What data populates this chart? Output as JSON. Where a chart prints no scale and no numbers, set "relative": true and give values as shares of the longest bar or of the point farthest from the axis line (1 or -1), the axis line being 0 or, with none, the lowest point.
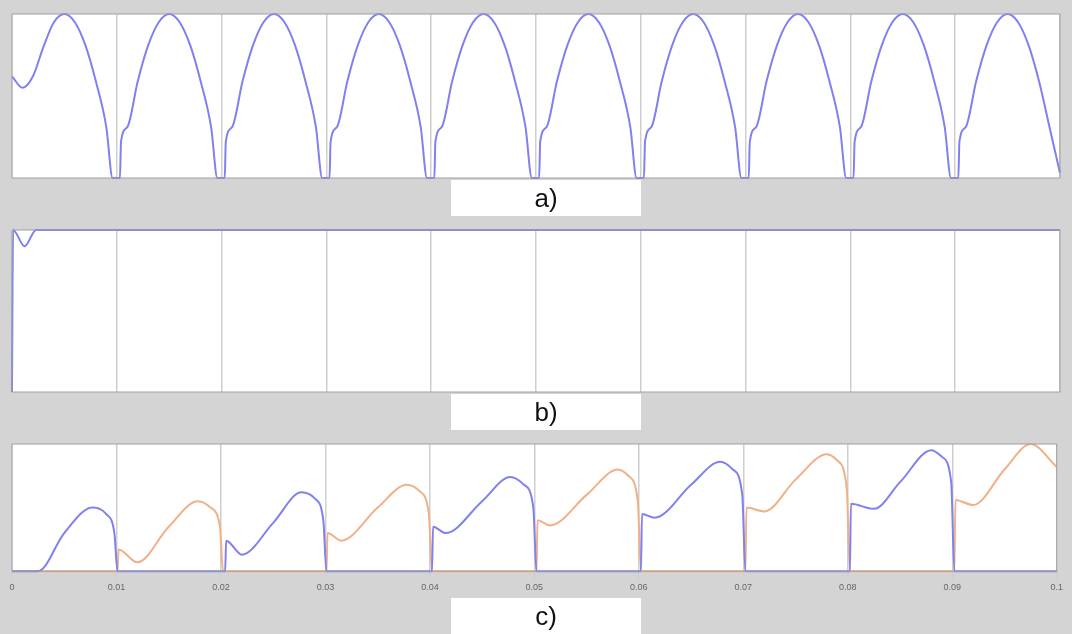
{
  "chart_data": [
    {
      "type": "line",
      "xlabel": "a)",
      "relative": true,
      "grid": "x",
      "tick_labels": false,
      "xlim": [
        0,
        0.1
      ],
      "xticks": [
        0,
        0.01,
        0.02,
        0.03,
        0.04,
        0.05,
        0.06,
        0.07,
        0.08,
        0.09,
        0.1
      ],
      "x": [
        0,
        0.001,
        0.002,
        0.003,
        0.004,
        0.005,
        0.006,
        0.007,
        0.008,
        0.009,
        0.0096,
        0.0103,
        0.0104,
        0.011,
        0.012,
        0.013,
        0.014,
        0.015,
        0.016,
        0.017,
        0.018,
        0.019,
        0.0196,
        0.0203,
        0.0204,
        0.021,
        0.022,
        0.023,
        0.024,
        0.025,
        0.026,
        0.027,
        0.028,
        0.029,
        0.0296,
        0.0303,
        0.0304,
        0.031,
        0.032,
        0.033,
        0.034,
        0.035,
        0.036,
        0.037,
        0.038,
        0.039,
        0.0396,
        0.0403,
        0.0404,
        0.041,
        0.042,
        0.043,
        0.044,
        0.045,
        0.046,
        0.047,
        0.048,
        0.049,
        0.0496,
        0.0503,
        0.0504,
        0.051,
        0.052,
        0.053,
        0.054,
        0.055,
        0.056,
        0.057,
        0.058,
        0.059,
        0.0596,
        0.0603,
        0.0604,
        0.061,
        0.062,
        0.063,
        0.064,
        0.065,
        0.066,
        0.067,
        0.068,
        0.069,
        0.0696,
        0.0703,
        0.0704,
        0.071,
        0.072,
        0.073,
        0.074,
        0.075,
        0.076,
        0.077,
        0.078,
        0.079,
        0.0796,
        0.0803,
        0.0804,
        0.081,
        0.082,
        0.083,
        0.084,
        0.085,
        0.086,
        0.087,
        0.088,
        0.089,
        0.0896,
        0.0903,
        0.0904,
        0.091,
        0.092,
        0.093,
        0.094,
        0.095,
        0.096,
        0.097,
        0.098,
        0.099,
        0.1
      ],
      "series": [
        {
          "color": "#8080f0",
          "values": [
            0.62,
            0.55,
            0.62,
            0.8,
            0.95,
            1,
            0.95,
            0.81,
            0.59,
            0.31,
            0,
            0,
            0.22,
            0.31,
            0.59,
            0.81,
            0.95,
            1,
            0.95,
            0.81,
            0.59,
            0.31,
            0,
            0,
            0.22,
            0.31,
            0.59,
            0.81,
            0.95,
            1,
            0.95,
            0.81,
            0.59,
            0.31,
            0,
            0,
            0.22,
            0.31,
            0.59,
            0.81,
            0.95,
            1,
            0.95,
            0.81,
            0.59,
            0.31,
            0,
            0,
            0.22,
            0.31,
            0.59,
            0.81,
            0.95,
            1,
            0.95,
            0.81,
            0.59,
            0.31,
            0,
            0,
            0.22,
            0.31,
            0.59,
            0.81,
            0.95,
            1,
            0.95,
            0.81,
            0.59,
            0.31,
            0,
            0,
            0.22,
            0.31,
            0.59,
            0.81,
            0.95,
            1,
            0.95,
            0.81,
            0.59,
            0.31,
            0,
            0,
            0.22,
            0.31,
            0.59,
            0.81,
            0.95,
            1,
            0.95,
            0.81,
            0.59,
            0.31,
            0,
            0,
            0.22,
            0.31,
            0.59,
            0.81,
            0.95,
            1,
            0.95,
            0.81,
            0.59,
            0.31,
            0,
            0,
            0.22,
            0.31,
            0.59,
            0.81,
            0.95,
            1,
            0.95,
            0.81,
            0.59,
            0.31,
            0.03
          ]
        }
      ]
    },
    {
      "type": "line",
      "xlabel": "b)",
      "relative": true,
      "grid": "x",
      "tick_labels": false,
      "xlim": [
        0,
        0.1
      ],
      "xticks": [
        0,
        0.01,
        0.02,
        0.03,
        0.04,
        0.05,
        0.06,
        0.07,
        0.08,
        0.09,
        0.1
      ],
      "x": [
        0,
        0.0001,
        0.0012,
        0.0023,
        0.1
      ],
      "series": [
        {
          "color": "#8080f0",
          "values": [
            0,
            1,
            0.9,
            1,
            1
          ]
        }
      ]
    },
    {
      "type": "line",
      "xlabel": "c)",
      "relative": true,
      "grid": "x",
      "tick_labels": "x",
      "xlim": [
        0,
        0.1
      ],
      "xticks": [
        0,
        0.01,
        0.02,
        0.03,
        0.04,
        0.05,
        0.06,
        0.07,
        0.08,
        0.09,
        0.1
      ],
      "series": [
        {
          "color": "#8080f0",
          "x": [
            0,
            0.0025,
            0.005,
            0.0077,
            0.009,
            0.0098,
            0.0101,
            0.0204,
            0.0205,
            0.022,
            0.025,
            0.0277,
            0.029,
            0.0298,
            0.0301,
            0.0402,
            0.0403,
            0.0415,
            0.045,
            0.0477,
            0.049,
            0.0499,
            0.0502,
            0.0602,
            0.0603,
            0.0615,
            0.065,
            0.0678,
            0.069,
            0.0699,
            0.0702,
            0.0802,
            0.0803,
            0.0825,
            0.085,
            0.088,
            0.089,
            0.0899,
            0.0902,
            0.1
          ],
          "values": [
            0,
            0,
            0.3,
            0.5,
            0.45,
            0.3,
            0,
            0,
            0.24,
            0.13,
            0.38,
            0.62,
            0.57,
            0.4,
            0,
            0,
            0.35,
            0.3,
            0.55,
            0.74,
            0.68,
            0.5,
            0,
            0,
            0.45,
            0.42,
            0.68,
            0.86,
            0.8,
            0.6,
            0,
            0,
            0.53,
            0.49,
            0.7,
            0.95,
            0.9,
            0.7,
            0,
            0
          ]
        },
        {
          "color": "#f0b088",
          "x": [
            0,
            0.0101,
            0.0102,
            0.012,
            0.015,
            0.0178,
            0.019,
            0.0199,
            0.0202,
            0.0301,
            0.0302,
            0.0315,
            0.035,
            0.0378,
            0.039,
            0.0399,
            0.0402,
            0.0502,
            0.0503,
            0.0515,
            0.055,
            0.058,
            0.059,
            0.0599,
            0.0602,
            0.0702,
            0.0703,
            0.072,
            0.075,
            0.078,
            0.079,
            0.0799,
            0.0802,
            0.0902,
            0.0903,
            0.092,
            0.095,
            0.0975,
            0.1
          ],
          "values": [
            0,
            0,
            0.17,
            0.07,
            0.35,
            0.55,
            0.5,
            0.35,
            0,
            0,
            0.3,
            0.24,
            0.5,
            0.68,
            0.63,
            0.45,
            0,
            0,
            0.4,
            0.36,
            0.6,
            0.8,
            0.75,
            0.55,
            0,
            0,
            0.5,
            0.47,
            0.72,
            0.92,
            0.87,
            0.65,
            0,
            0,
            0.56,
            0.52,
            0.8,
            1,
            0.82
          ]
        }
      ]
    }
  ]
}
